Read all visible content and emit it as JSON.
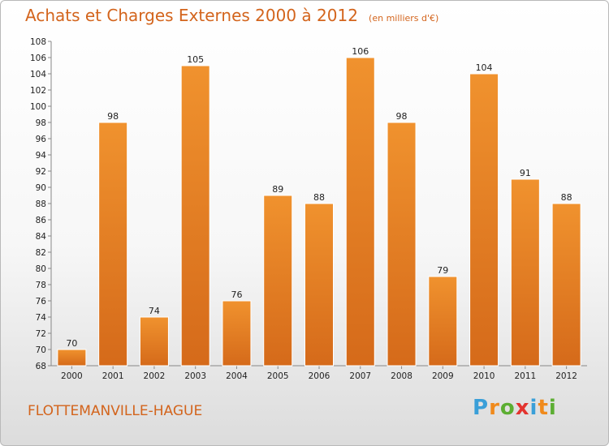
{
  "header": {
    "title": "Achats et Charges Externes 2000 à 2012",
    "unit": "(en milliers d'€)"
  },
  "footer": {
    "commune": "FLOTTEMANVILLE-HAGUE",
    "logo_letters": [
      "P",
      "r",
      "o",
      "x",
      "i",
      "t",
      "i"
    ],
    "logo_colors": [
      "#3a9fd8",
      "#f08a1c",
      "#5cae32",
      "#e3342f",
      "#3a9fd8",
      "#f08a1c",
      "#5cae32"
    ]
  },
  "chart_data": {
    "type": "bar",
    "title": "Achats et Charges Externes 2000 à 2012",
    "subtitle": "(en milliers d'€)",
    "categories": [
      "2000",
      "2001",
      "2002",
      "2003",
      "2004",
      "2005",
      "2006",
      "2007",
      "2008",
      "2009",
      "2010",
      "2011",
      "2012"
    ],
    "values": [
      70,
      98,
      74,
      105,
      76,
      89,
      88,
      106,
      98,
      79,
      104,
      91,
      88
    ],
    "ylim": [
      68,
      108
    ],
    "ytick_step": 2,
    "grid": false,
    "bar_color": "#f0922e",
    "bar_color_dark": "#d56a1a"
  }
}
